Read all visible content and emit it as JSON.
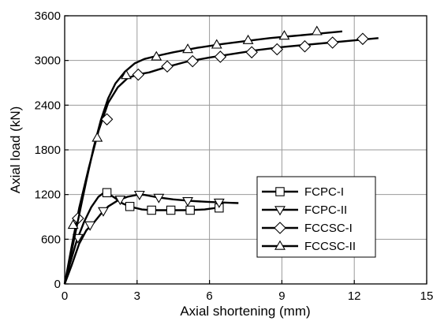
{
  "chart_data": {
    "type": "line",
    "title": "",
    "xlabel": "Axial shortening (mm)",
    "ylabel": "Axial load (kN)",
    "xlim": [
      0,
      15
    ],
    "ylim": [
      0,
      3600
    ],
    "xticks": [
      0,
      3,
      6,
      9,
      12,
      15
    ],
    "yticks": [
      0,
      600,
      1200,
      1800,
      2400,
      3000,
      3600
    ],
    "grid": true,
    "legend_position": "lower-right",
    "series": [
      {
        "name": "FCPC-I",
        "marker": "square",
        "x": [
          0,
          0.2,
          0.5,
          0.8,
          1.1,
          1.4,
          1.65,
          1.8,
          2.1,
          2.4,
          2.8,
          3.2,
          3.6,
          4.2,
          5.0,
          5.8,
          6.5
        ],
        "y": [
          0,
          250,
          580,
          830,
          1030,
          1170,
          1230,
          1215,
          1150,
          1080,
          1030,
          1000,
          990,
          990,
          990,
          1000,
          1030
        ],
        "marker_x": [
          1.75,
          2.7,
          3.6,
          4.4,
          5.2,
          6.4
        ],
        "marker_y": [
          1225,
          1040,
          990,
          990,
          990,
          1020
        ]
      },
      {
        "name": "FCPC-II",
        "marker": "triangle-down",
        "x": [
          0,
          0.3,
          0.6,
          0.9,
          1.2,
          1.5,
          1.8,
          2.2,
          2.6,
          3.0,
          3.3,
          3.8,
          4.5,
          5.2,
          6.0,
          6.8,
          7.2
        ],
        "y": [
          0,
          260,
          540,
          720,
          820,
          940,
          1040,
          1120,
          1170,
          1195,
          1195,
          1165,
          1135,
          1115,
          1100,
          1090,
          1085
        ],
        "marker_x": [
          0.55,
          1.05,
          1.6,
          2.3,
          3.1,
          3.9,
          5.1,
          6.4
        ],
        "marker_y": [
          620,
          790,
          980,
          1135,
          1200,
          1160,
          1115,
          1095
        ]
      },
      {
        "name": "FCCSC-I",
        "marker": "diamond",
        "x": [
          0,
          0.3,
          0.6,
          1.0,
          1.4,
          1.8,
          2.2,
          2.6,
          3.0,
          3.5,
          4.2,
          5.0,
          6.0,
          7.0,
          8.0,
          9.0,
          10.0,
          11.0,
          12.0,
          13.0
        ],
        "y": [
          0,
          520,
          1020,
          1560,
          2050,
          2430,
          2640,
          2760,
          2810,
          2840,
          2910,
          2980,
          3040,
          3090,
          3140,
          3180,
          3210,
          3240,
          3270,
          3300
        ],
        "marker_x": [
          0.55,
          1.75,
          3.05,
          4.25,
          5.3,
          6.45,
          7.75,
          8.8,
          9.95,
          11.1,
          12.35
        ],
        "marker_y": [
          880,
          2210,
          2810,
          2920,
          2990,
          3050,
          3110,
          3150,
          3190,
          3240,
          3290
        ]
      },
      {
        "name": "FCCSC-II",
        "marker": "triangle-up",
        "x": [
          0,
          0.3,
          0.6,
          0.9,
          1.2,
          1.5,
          1.8,
          2.1,
          2.5,
          2.9,
          3.3,
          3.8,
          4.5,
          5.5,
          6.5,
          7.5,
          8.5,
          9.5,
          10.5,
          11.5
        ],
        "y": [
          0,
          460,
          930,
          1390,
          1830,
          2200,
          2490,
          2690,
          2850,
          2960,
          3020,
          3060,
          3110,
          3170,
          3220,
          3260,
          3300,
          3330,
          3360,
          3390
        ],
        "marker_x": [
          0.35,
          1.35,
          2.55,
          3.8,
          5.1,
          6.3,
          7.6,
          9.1,
          10.45
        ],
        "marker_y": [
          790,
          1960,
          2800,
          3050,
          3150,
          3210,
          3270,
          3330,
          3390
        ]
      }
    ]
  }
}
